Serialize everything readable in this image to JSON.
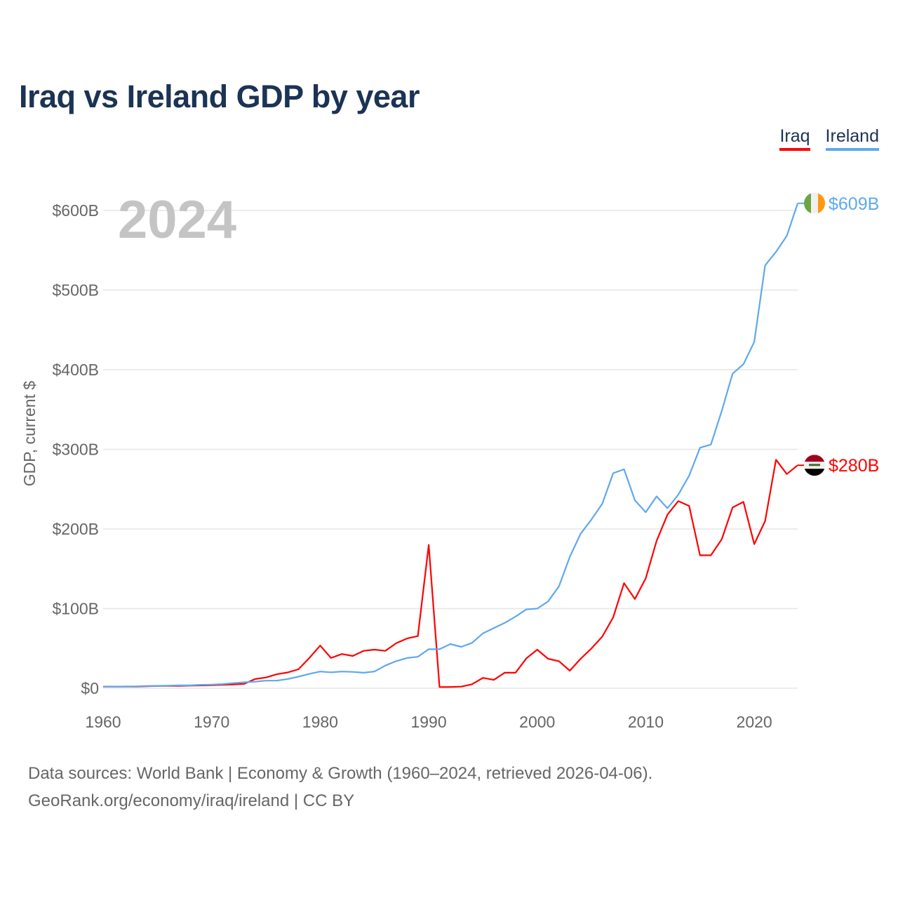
{
  "title": "Iraq vs Ireland GDP by year",
  "footer": {
    "line1": "Data sources: World Bank | Economy & Growth (1960–2024, retrieved 2026-04-06).",
    "line2": "GeoRank.org/economy/iraq/ireland | CC BY"
  },
  "chart_data": {
    "type": "line",
    "title": "Iraq vs Ireland GDP by year",
    "year_label": "2024",
    "xlabel": "",
    "ylabel": "GDP, current $",
    "xlim": [
      1960,
      2024
    ],
    "ylim": [
      0,
      600
    ],
    "x_ticks": [
      "1960",
      "1970",
      "1980",
      "1990",
      "2000",
      "2010",
      "2020"
    ],
    "y_ticks": [
      {
        "value": 0,
        "label": "$0"
      },
      {
        "value": 100,
        "label": "$100B"
      },
      {
        "value": 200,
        "label": "$200B"
      },
      {
        "value": 300,
        "label": "$300B"
      },
      {
        "value": 400,
        "label": "$400B"
      },
      {
        "value": 500,
        "label": "$500B"
      },
      {
        "value": 600,
        "label": "$600B"
      }
    ],
    "grid": true,
    "legend_position": "top-right",
    "x": [
      1960,
      1961,
      1962,
      1963,
      1964,
      1965,
      1966,
      1967,
      1968,
      1969,
      1970,
      1971,
      1972,
      1973,
      1974,
      1975,
      1976,
      1977,
      1978,
      1979,
      1980,
      1981,
      1982,
      1983,
      1984,
      1985,
      1986,
      1987,
      1988,
      1989,
      1990,
      1991,
      1992,
      1993,
      1994,
      1995,
      1996,
      1997,
      1998,
      1999,
      2000,
      2001,
      2002,
      2003,
      2004,
      2005,
      2006,
      2007,
      2008,
      2009,
      2010,
      2011,
      2012,
      2013,
      2014,
      2015,
      2016,
      2017,
      2018,
      2019,
      2020,
      2021,
      2022,
      2023,
      2024
    ],
    "series": [
      {
        "name": "Iraq",
        "color": "#ff0000",
        "end_label": "$280B",
        "values": [
          2,
          2,
          2,
          2,
          2.5,
          2.8,
          3,
          3,
          3.3,
          3.5,
          3.8,
          4.2,
          4.8,
          5.5,
          11.5,
          13.5,
          17.5,
          19.8,
          23.8,
          38,
          53.6,
          38,
          43,
          40.5,
          47,
          48.5,
          47,
          56.5,
          62.5,
          65.5,
          180,
          1.5,
          1.6,
          2,
          5,
          13,
          10.5,
          19.5,
          19.5,
          37.5,
          48.5,
          37,
          34,
          22,
          37,
          50,
          65,
          89,
          132,
          112,
          138,
          185,
          218,
          235,
          229,
          167,
          167,
          187,
          227,
          234,
          181,
          210,
          287,
          269,
          280
        ]
      },
      {
        "name": "Ireland",
        "color": "#5ea8ef",
        "end_label": "$609B",
        "values": [
          2,
          2,
          2.2,
          2.4,
          2.8,
          3,
          3.3,
          3.6,
          3.6,
          4.3,
          4.6,
          5.2,
          6.4,
          7.5,
          8.3,
          9.5,
          9.5,
          11.5,
          14.5,
          18,
          21,
          20,
          21,
          20.5,
          19.5,
          21,
          28.5,
          34,
          38,
          39.5,
          49,
          49,
          55.5,
          52,
          57,
          69,
          75.5,
          82,
          90,
          99,
          100,
          109,
          128,
          165,
          194,
          212,
          232,
          270,
          275,
          236,
          221,
          241,
          226,
          243,
          267,
          302,
          306,
          348,
          395,
          407,
          435,
          531,
          548,
          568,
          609
        ]
      }
    ]
  }
}
